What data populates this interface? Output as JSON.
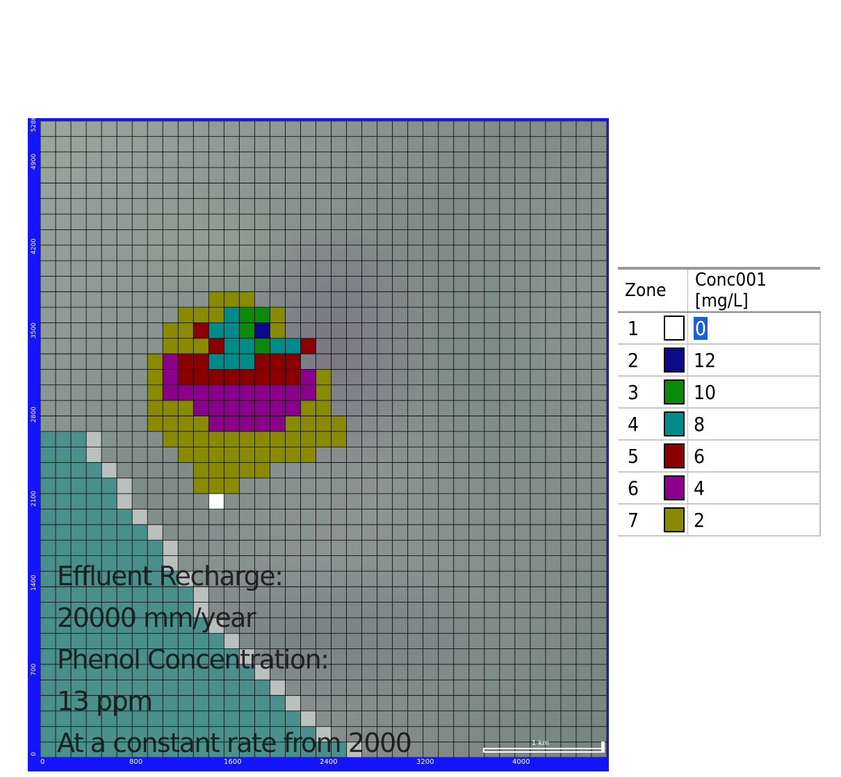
{
  "map": {
    "y_ticks": [
      "5286",
      "4900",
      "4200",
      "3500",
      "2800",
      "2100",
      "1400",
      "700",
      "0"
    ],
    "x_ticks": [
      "0",
      "800",
      "1600",
      "2400",
      "3200",
      "4000"
    ],
    "annotation_lines": [
      "Effluent Recharge:",
      "20000 mm/year",
      "Phenol Concentration:",
      "13 ppm",
      "At a constant rate from 2000"
    ],
    "scale_label": "1 km"
  },
  "legend": {
    "col_zone": "Zone",
    "col_conc": "Conc001 [mg/L]",
    "rows": [
      {
        "zone": "1",
        "color": "#ffffff",
        "value": "0"
      },
      {
        "zone": "2",
        "color": "#0a0a8a",
        "value": "12"
      },
      {
        "zone": "3",
        "color": "#0a8a0a",
        "value": "10"
      },
      {
        "zone": "4",
        "color": "#008a8a",
        "value": "8"
      },
      {
        "zone": "5",
        "color": "#8a0000",
        "value": "6"
      },
      {
        "zone": "6",
        "color": "#8a008a",
        "value": "4"
      },
      {
        "zone": "7",
        "color": "#8a8a00",
        "value": "2"
      }
    ]
  },
  "grid": {
    "cols": 37,
    "rows": 41
  },
  "plume_rows": [
    {
      "row": 11,
      "cells": "777"
    },
    {
      "row": 12,
      "cells": "7774337"
    },
    {
      "row": 13,
      "cells": "77544327"
    },
    {
      "row": 14,
      "cells": "7775443445"
    },
    {
      "row": 15,
      "cells": "7655444555"
    },
    {
      "row": 16,
      "cells": "765555555567"
    },
    {
      "row": 17,
      "cells": "766666666667"
    },
    {
      "row": 18,
      "cells": "777666666677"
    },
    {
      "row": 19,
      "cells": "7777666667777"
    },
    {
      "row": 20,
      "cells": "777777777777"
    },
    {
      "row": 21,
      "cells": "777777777"
    },
    {
      "row": 22,
      "cells": "77777"
    },
    {
      "row": 23,
      "cells": "777"
    },
    {
      "row": 24,
      "cells": "1"
    }
  ],
  "plume_starts": [
    11,
    9,
    8,
    8,
    7,
    7,
    7,
    7,
    7,
    8,
    9,
    10,
    10,
    11
  ],
  "river_profile": [
    3,
    3,
    4,
    5,
    5,
    6,
    7,
    8,
    8,
    9,
    10,
    10,
    11,
    12,
    13,
    14,
    15,
    16,
    17,
    18,
    20
  ]
}
